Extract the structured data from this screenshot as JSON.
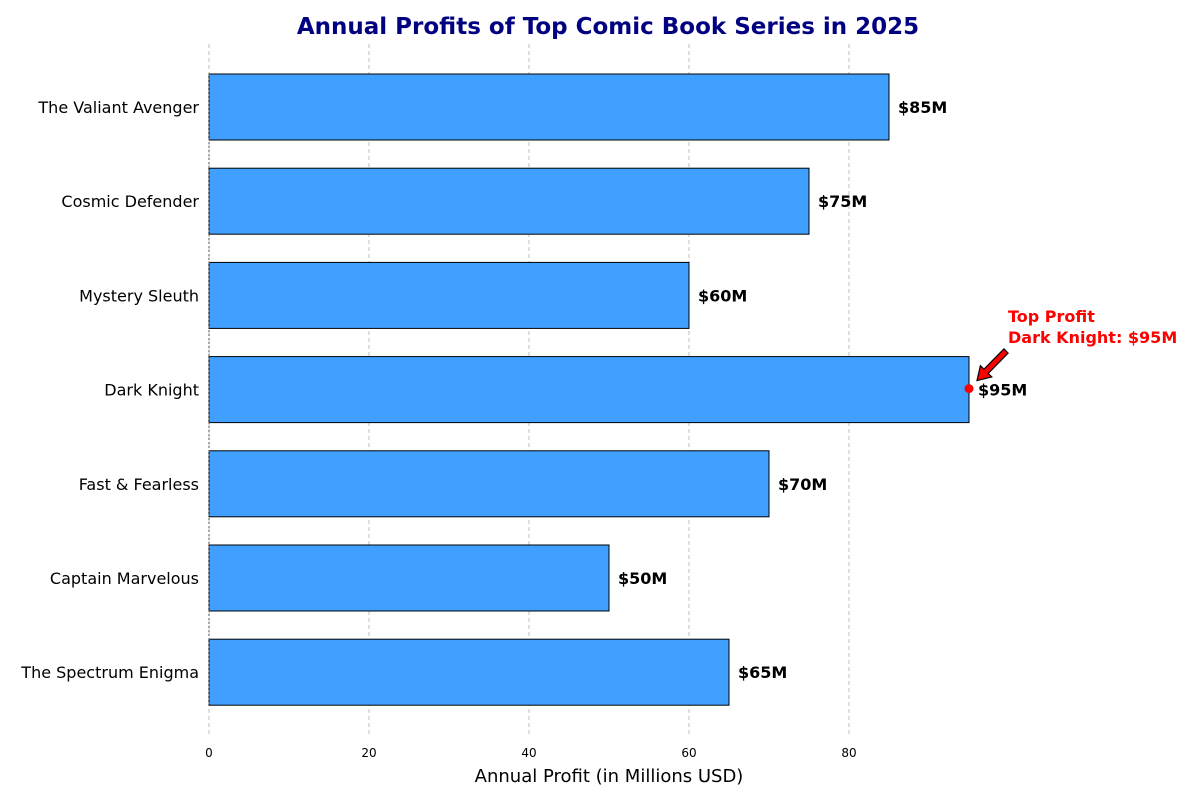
{
  "chart_data": {
    "type": "bar",
    "orientation": "horizontal",
    "title": "Annual Profits of Top Comic Book Series in 2025",
    "xlabel": "Annual Profit (in Millions USD)",
    "ylabel": "",
    "categories": [
      "The Valiant Avenger",
      "Cosmic Defender",
      "Mystery Sleuth",
      "Dark Knight",
      "Fast & Fearless",
      "Captain Marvelous",
      "The Spectrum Enigma"
    ],
    "values": [
      85,
      75,
      60,
      95,
      70,
      50,
      65
    ],
    "value_labels": [
      "$85M",
      "$75M",
      "$60M",
      "$95M",
      "$70M",
      "$50M",
      "$65M"
    ],
    "xlim": [
      0,
      100
    ],
    "x_ticks": [
      0,
      20,
      40,
      60,
      80
    ],
    "grid": "vertical-dashed",
    "annotation": {
      "category": "Dark Knight",
      "value": 95,
      "lines": [
        "Top Profit",
        "Dark Knight: $95M"
      ]
    },
    "colors": {
      "bar": "#409FFF",
      "bar_edge": "#000000",
      "title": "#000080",
      "annotation": "#FF0000",
      "grid": "#BFBFBF"
    }
  }
}
